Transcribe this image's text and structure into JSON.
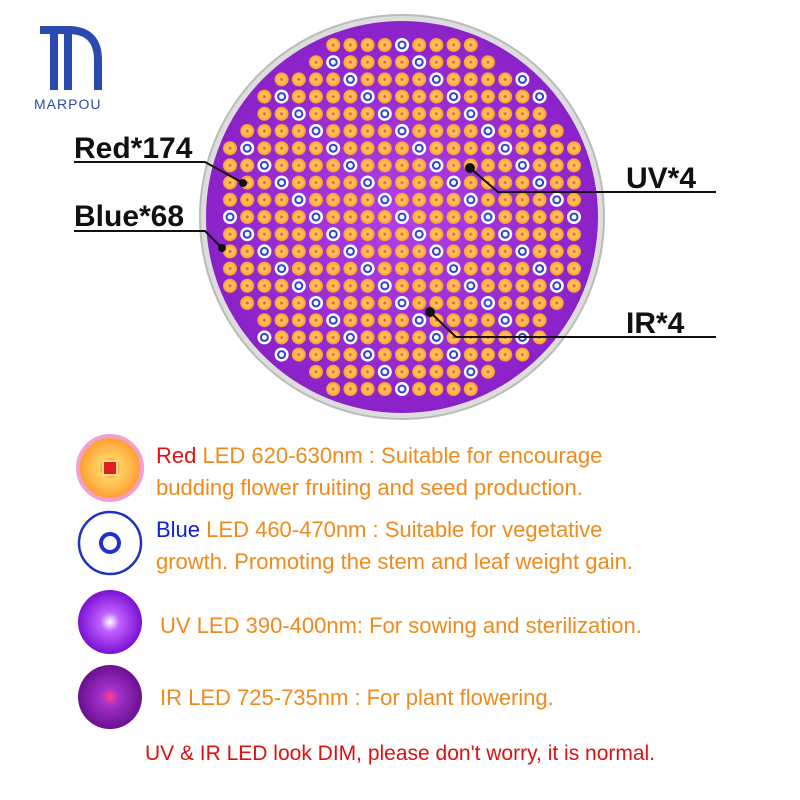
{
  "brand": "MARPOU",
  "callouts": [
    "Red*174",
    "Blue*68",
    "UV*4",
    "IR*4"
  ],
  "legend": [
    {
      "name": "Red",
      "lines": [
        "LED 620-630nm : Suitable for encourage",
        "budding flower fruiting and seed production."
      ]
    },
    {
      "name": "Blue",
      "lines": [
        "LED 460-470nm : Suitable for vegetative",
        "growth. Promoting the stem and leaf weight gain."
      ]
    },
    {
      "name": "UV",
      "lines": [
        "LED 390-400nm: For sowing and sterilization."
      ]
    },
    {
      "name": "IR",
      "lines": [
        "LED 725-735nm : For plant flowering."
      ]
    }
  ],
  "footnote": "UV & IR LED look DIM, please don't worry, it is normal."
}
